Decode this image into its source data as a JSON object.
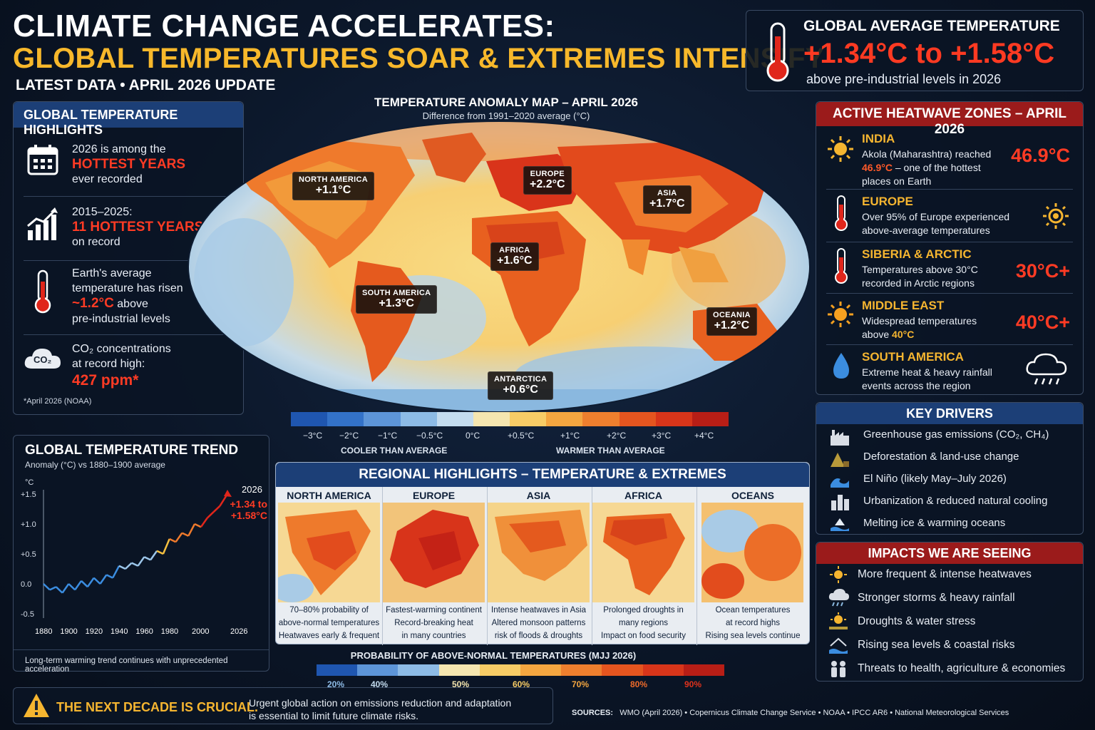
{
  "header": {
    "title_line1": "CLIMATE CHANGE ACCELERATES:",
    "title_line2": "GLOBAL TEMPERATURES SOAR & EXTREMES INTENSIFY",
    "subtitle": "LATEST DATA • APRIL 2026 UPDATE"
  },
  "global_avg": {
    "title": "GLOBAL AVERAGE TEMPERATURE",
    "value": "+1.34°C to +1.58°C",
    "note": "above pre-industrial levels in 2026"
  },
  "highlights": {
    "title": "GLOBAL TEMPERATURE HIGHLIGHTS",
    "items": [
      {
        "line1": "2026 is among the",
        "emph": "HOTTEST YEARS",
        "line3": "ever recorded"
      },
      {
        "line1": "2015–2025:",
        "emph": "11 HOTTEST YEARS",
        "line3": "on record"
      },
      {
        "line1": "Earth's average",
        "line2": "temperature has risen",
        "emph": "~1.2°C",
        "emph_tail": " above",
        "line4": "pre-industrial levels"
      },
      {
        "line1": "CO₂ concentrations",
        "line2": "at record high:",
        "emph": "427 ppm*"
      }
    ],
    "co2_badge": "CO₂",
    "footnote": "*April 2026 (NOAA)"
  },
  "trend": {
    "title": "GLOBAL TEMPERATURE TREND",
    "subtitle": "Anomaly (°C) vs 1880–1900 average",
    "unit": "°C",
    "year_label": "2026",
    "range_label_1": "+1.34 to",
    "range_label_2": "+1.58°C",
    "y_ticks": [
      "+1.5",
      "+1.0",
      "+0.5",
      "0.0",
      "-0.5"
    ],
    "x_ticks": [
      "1880",
      "1900",
      "1920",
      "1940",
      "1960",
      "1980",
      "2000",
      "2026"
    ],
    "footer": "Long-term warming trend continues with unprecedented acceleration"
  },
  "chart_data": {
    "type": "line",
    "x": [
      1880,
      1885,
      1890,
      1895,
      1900,
      1905,
      1910,
      1915,
      1920,
      1925,
      1930,
      1935,
      1940,
      1945,
      1950,
      1955,
      1960,
      1965,
      1970,
      1975,
      1980,
      1985,
      1990,
      1995,
      2000,
      2005,
      2010,
      2015,
      2020,
      2026
    ],
    "y": [
      0.0,
      -0.1,
      -0.05,
      -0.15,
      0.0,
      -0.1,
      0.05,
      -0.05,
      0.1,
      0.0,
      0.15,
      0.1,
      0.3,
      0.25,
      0.35,
      0.3,
      0.45,
      0.4,
      0.55,
      0.5,
      0.75,
      0.7,
      0.85,
      0.8,
      1.0,
      0.95,
      1.1,
      1.2,
      1.3,
      1.5
    ],
    "ylim": [
      -0.5,
      1.5
    ],
    "xlim": [
      1880,
      2026
    ],
    "xlabel": "",
    "ylabel": "°C",
    "title": "GLOBAL TEMPERATURE TREND",
    "grid": false
  },
  "map": {
    "title": "TEMPERATURE ANOMALY MAP – APRIL 2026",
    "subtitle": "Difference from 1991–2020 average (°C)",
    "labels": [
      {
        "name": "NORTH AMERICA",
        "value": "+1.1°C"
      },
      {
        "name": "EUROPE",
        "value": "+2.2°C"
      },
      {
        "name": "ASIA",
        "value": "+1.7°C"
      },
      {
        "name": "AFRICA",
        "value": "+1.6°C"
      },
      {
        "name": "SOUTH AMERICA",
        "value": "+1.3°C"
      },
      {
        "name": "OCEANIA",
        "value": "+1.2°C"
      },
      {
        "name": "ANTARCTICA",
        "value": "+0.6°C"
      }
    ],
    "scale_ticks": [
      "−3°C",
      "−2°C",
      "−1°C",
      "−0.5°C",
      "0°C",
      "+0.5°C",
      "+1°C",
      "+2°C",
      "+3°C",
      "+4°C"
    ],
    "cooler": "COOLER THAN AVERAGE",
    "warmer": "WARMER THAN AVERAGE"
  },
  "regional": {
    "title": "REGIONAL HIGHLIGHTS – TEMPERATURE & EXTREMES",
    "cols": [
      {
        "name": "NORTH AMERICA",
        "d1": "70–80% probability of",
        "d2": "above-normal temperatures",
        "d3": "Heatwaves early & frequent"
      },
      {
        "name": "EUROPE",
        "d1": "Fastest-warming continent",
        "d2": "Record-breaking heat",
        "d3": "in many countries"
      },
      {
        "name": "ASIA",
        "d1": "Intense heatwaves in Asia",
        "d2": "Altered monsoon patterns",
        "d3": "risk of floods & droughts"
      },
      {
        "name": "AFRICA",
        "d1": "Prolonged droughts in",
        "d2": "many regions",
        "d3": "Impact on food security"
      },
      {
        "name": "OCEANS",
        "d1": "Ocean temperatures",
        "d2": "at record highs",
        "d3": "Rising sea levels continue"
      }
    ],
    "prob_title": "PROBABILITY OF ABOVE-NORMAL TEMPERATURES (MJJ 2026)",
    "prob_ticks": [
      "20%",
      "40%",
      "50%",
      "60%",
      "70%",
      "80%",
      "90%"
    ]
  },
  "heatwave": {
    "title": "ACTIVE HEATWAVE ZONES – APRIL 2026",
    "items": [
      {
        "name": "INDIA",
        "d1": "Akola (Maharashtra) reached",
        "d2_emph": "46.9°C",
        "d2_tail": " – one of the hottest",
        "d3": "places on Earth",
        "value": "46.9°C"
      },
      {
        "name": "EUROPE",
        "d1": "Over 95% of Europe experienced",
        "d2": "above-average temperatures"
      },
      {
        "name": "SIBERIA & ARCTIC",
        "d1": "Temperatures above 30°C",
        "d2": "recorded in Arctic regions",
        "value": "30°C+"
      },
      {
        "name": "MIDDLE EAST",
        "d1": "Widespread temperatures",
        "d2_pre": "above ",
        "d2_emph": "40°C",
        "value": "40°C+"
      },
      {
        "name": "SOUTH AMERICA",
        "d1": "Extreme heat & heavy rainfall",
        "d2": "events across the region"
      }
    ]
  },
  "drivers": {
    "title": "KEY DRIVERS",
    "items": [
      "Greenhouse gas emissions (CO₂, CH₄)",
      "Deforestation & land-use change",
      "El Niño (likely May–July 2026)",
      "Urbanization & reduced natural cooling",
      "Melting ice & warming oceans"
    ]
  },
  "impacts": {
    "title": "IMPACTS WE ARE SEEING",
    "items": [
      "More frequent & intense heatwaves",
      "Stronger storms & heavy rainfall",
      "Droughts & water stress",
      "Rising sea levels & coastal risks",
      "Threats to health, agriculture & economies"
    ]
  },
  "bottom": {
    "decade": "THE NEXT DECADE IS CRUCIAL.",
    "decade_sub1": "Urgent global action on emissions reduction and adaptation",
    "decade_sub2": "is essential to limit future climate risks.",
    "sources_label": "SOURCES:",
    "sources": "WMO (April 2026)   •   Copernicus Climate Change Service   •   NOAA   •   IPCC AR6   •   National Meteorological Services"
  },
  "colors": {
    "accent_yellow": "#f7b82b",
    "accent_red": "#ff3b24",
    "panel_blue": "#1c3f77",
    "panel_red": "#9b1b1b"
  }
}
